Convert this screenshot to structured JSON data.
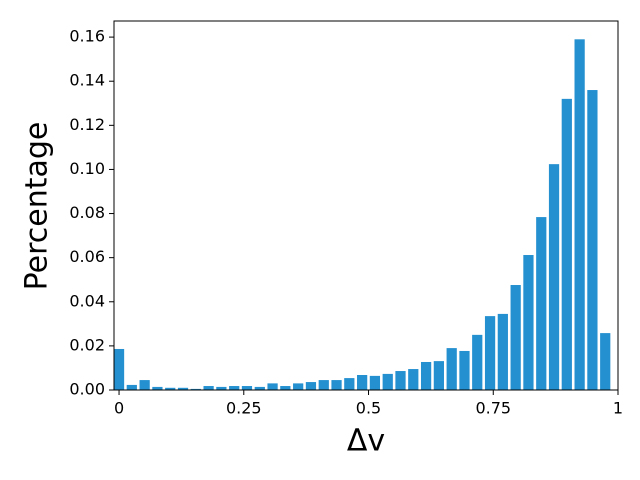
{
  "chart_data": {
    "type": "bar",
    "xlabel": "Δv",
    "ylabel": "Percentage",
    "x": [
      0,
      0.0256,
      0.0513,
      0.0769,
      0.1026,
      0.1282,
      0.1538,
      0.1795,
      0.2051,
      0.2308,
      0.2564,
      0.2821,
      0.3077,
      0.3333,
      0.359,
      0.3846,
      0.4103,
      0.4359,
      0.4615,
      0.4872,
      0.5128,
      0.5385,
      0.5641,
      0.5897,
      0.6154,
      0.641,
      0.6667,
      0.6923,
      0.7179,
      0.7436,
      0.7692,
      0.7949,
      0.8205,
      0.8462,
      0.8718,
      0.8974,
      0.9231,
      0.9487,
      0.9744
    ],
    "values": [
      0.0186,
      0.0023,
      0.0045,
      0.0014,
      0.001,
      0.001,
      0.0005,
      0.0018,
      0.0014,
      0.0018,
      0.0018,
      0.0014,
      0.003,
      0.0018,
      0.003,
      0.0036,
      0.0045,
      0.0045,
      0.0054,
      0.0068,
      0.0064,
      0.0073,
      0.0086,
      0.0095,
      0.0127,
      0.0131,
      0.019,
      0.0177,
      0.025,
      0.0335,
      0.0345,
      0.0476,
      0.0612,
      0.0784,
      0.1024,
      0.132,
      0.159,
      0.136,
      0.0258
    ],
    "color": "#2590d0",
    "xlim": [
      -0.0101,
      1.0
    ],
    "xticks": [
      0,
      0.25,
      0.5,
      0.75,
      1
    ],
    "ylim": [
      0,
      0.1673
    ],
    "yticks": [
      {
        "value": 0,
        "label": "0.00"
      },
      {
        "value": 0.02,
        "label": "0.02"
      },
      {
        "value": 0.04,
        "label": "0.04"
      },
      {
        "value": 0.06,
        "label": "0.06"
      },
      {
        "value": 0.08,
        "label": "0.08"
      },
      {
        "value": 0.1,
        "label": "0.10"
      },
      {
        "value": 0.12,
        "label": "0.12"
      },
      {
        "value": 0.14,
        "label": "0.14"
      },
      {
        "value": 0.16,
        "label": "0.16"
      }
    ]
  }
}
